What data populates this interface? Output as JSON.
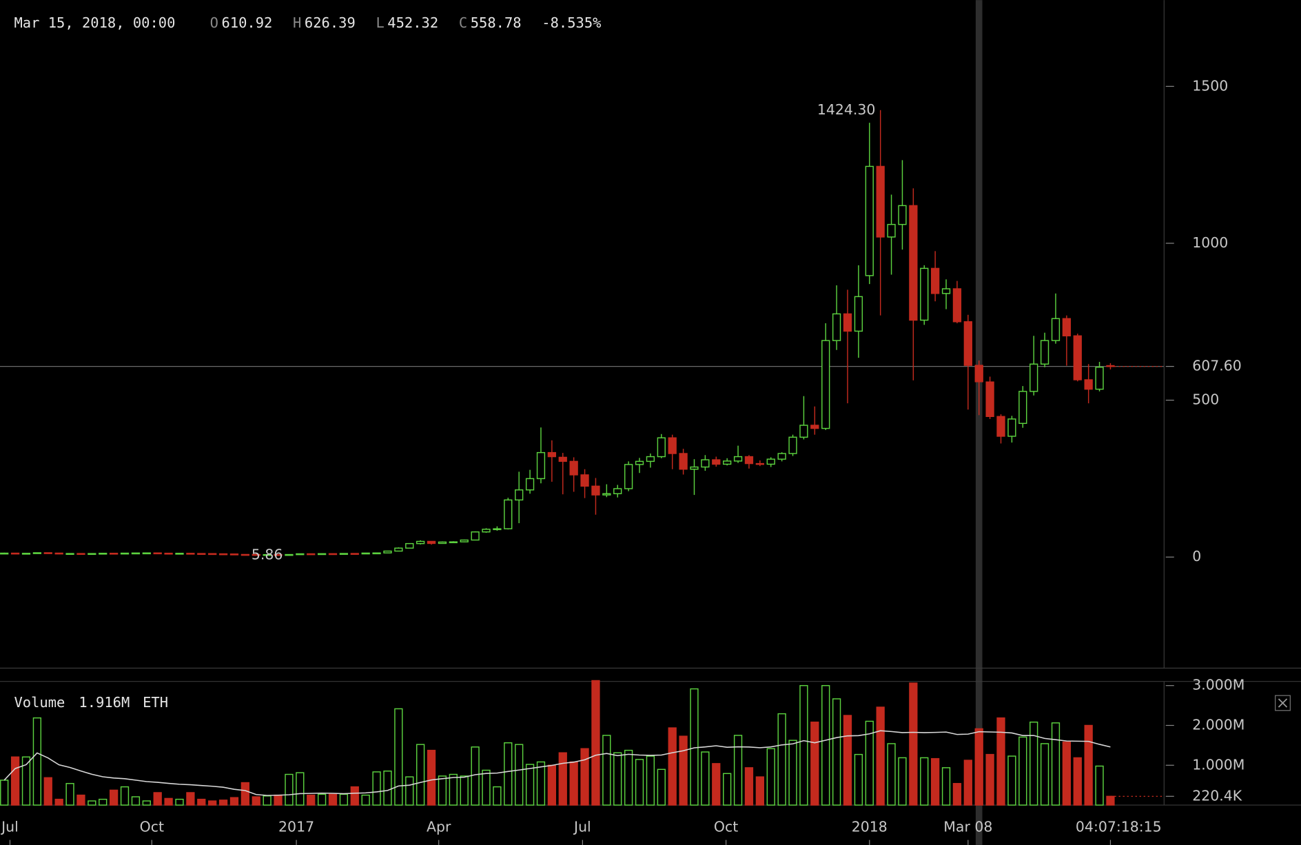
{
  "chart_data": {
    "type": "candlestick",
    "header": {
      "date": "Mar 15, 2018, 00:00",
      "fields": [
        {
          "name": "O",
          "value": 610.92
        },
        {
          "name": "H",
          "value": 626.39
        },
        {
          "name": "L",
          "value": 452.32
        },
        {
          "name": "C",
          "value": 558.78
        }
      ],
      "change": {
        "value": -8.535,
        "label": "-8.535%"
      }
    },
    "x": [
      0,
      1,
      2,
      3,
      4,
      5,
      6,
      7,
      8,
      9,
      10,
      11,
      12,
      13,
      14,
      15,
      16,
      17,
      18,
      19,
      20,
      21,
      22,
      23,
      24,
      25,
      26,
      27,
      28,
      29,
      30,
      31,
      32,
      33,
      34,
      35,
      36,
      37,
      38,
      39,
      40,
      41,
      42,
      43,
      44,
      45,
      46,
      47,
      48,
      49,
      50,
      51,
      52,
      53,
      54,
      55,
      56,
      57,
      58,
      59,
      60,
      61,
      62,
      63,
      64,
      65,
      66,
      67,
      68,
      69,
      70,
      71,
      72,
      73,
      74,
      75,
      76,
      77,
      78,
      79,
      80,
      81,
      82,
      83,
      84,
      85,
      86,
      87,
      88,
      89,
      90,
      91,
      92,
      93,
      94,
      95,
      96,
      97,
      98,
      99,
      100,
      101
    ],
    "open": [
      11.9,
      12.5,
      10.6,
      12.0,
      13.8,
      12.6,
      10.9,
      11.3,
      11.0,
      11.2,
      12.1,
      12.0,
      12.5,
      13.0,
      13.2,
      12.2,
      11.9,
      12.0,
      11.3,
      11.0,
      10.3,
      9.8,
      8.3,
      8.2,
      7.7,
      7.9,
      7.4,
      8.1,
      10.4,
      9.7,
      10.8,
      10.5,
      11.4,
      11.2,
      12.8,
      13.2,
      19.1,
      28.5,
      43.0,
      50.0,
      43.5,
      47.9,
      48.5,
      54.3,
      80.1,
      88.6,
      90.2,
      182,
      214,
      250,
      333,
      318,
      305,
      262,
      226,
      198,
      202,
      218,
      295,
      305,
      320,
      380,
      330,
      280,
      287,
      310,
      296,
      306,
      320,
      298,
      296,
      312,
      330,
      382,
      420,
      410,
      690,
      775,
      720,
      897,
      1245,
      1020,
      1060,
      1120,
      755,
      920,
      840,
      855,
      750,
      610.92,
      558,
      448,
      385,
      426,
      528,
      615,
      690,
      760,
      705,
      565,
      535,
      610
    ],
    "high": [
      14.1,
      12.7,
      12.4,
      14.3,
      14.0,
      12.8,
      11.9,
      11.5,
      11.6,
      12.3,
      12.4,
      12.8,
      13.3,
      13.5,
      13.4,
      12.4,
      12.2,
      12.1,
      11.5,
      11.2,
      10.6,
      9.9,
      8.8,
      8.5,
      8.4,
      8.2,
      8.3,
      11.3,
      10.9,
      11.2,
      11.0,
      11.6,
      11.7,
      13.1,
      13.6,
      19.8,
      30.8,
      44.1,
      53.5,
      51.0,
      49.8,
      50.5,
      55.7,
      82.0,
      92.0,
      98.0,
      189,
      272,
      278,
      413,
      372,
      332,
      318,
      280,
      252,
      232,
      230,
      305,
      316,
      330,
      392,
      390,
      345,
      312,
      325,
      320,
      315,
      355,
      325,
      308,
      318,
      334,
      390,
      513,
      480,
      745,
      866,
      852,
      930,
      1384,
      1424.3,
      1155,
      1265,
      1175,
      930,
      975,
      885,
      880,
      772,
      626.39,
      575,
      455,
      450,
      545,
      705,
      715,
      840,
      770,
      712,
      615,
      622,
      618
    ],
    "low": [
      11.3,
      9.6,
      10.3,
      11.8,
      12.2,
      10.2,
      10.6,
      10.7,
      10.8,
      11.0,
      11.6,
      11.8,
      12.3,
      12.8,
      11.9,
      11.6,
      11.5,
      10.9,
      10.6,
      10.1,
      9.4,
      8.0,
      7.6,
      7.3,
      5.86,
      7.1,
      7.2,
      8.0,
      9.4,
      9.6,
      10.3,
      10.4,
      10.9,
      11.1,
      12.6,
      13.0,
      18.6,
      28.0,
      40.1,
      39.5,
      42.6,
      45.6,
      47.2,
      53.9,
      77.5,
      84.0,
      88.0,
      108,
      202,
      235,
      240,
      200,
      208,
      188,
      135,
      191,
      190,
      210,
      268,
      285,
      315,
      280,
      263,
      198,
      275,
      288,
      292,
      300,
      282,
      290,
      287,
      305,
      322,
      375,
      390,
      405,
      660,
      490,
      635,
      870,
      770,
      900,
      980,
      563,
      740,
      815,
      790,
      745,
      470,
      452.32,
      440,
      362,
      365,
      412,
      515,
      605,
      680,
      610,
      560,
      490,
      528,
      598
    ],
    "close": [
      12.5,
      10.6,
      12.0,
      13.8,
      12.6,
      10.9,
      11.3,
      11.0,
      11.2,
      12.1,
      12.0,
      12.5,
      13.0,
      13.2,
      12.2,
      11.9,
      12.0,
      11.3,
      11.0,
      10.3,
      9.8,
      8.3,
      8.2,
      7.7,
      7.9,
      7.4,
      8.1,
      10.4,
      9.7,
      10.8,
      10.5,
      11.4,
      11.2,
      12.8,
      13.2,
      19.1,
      28.5,
      43.0,
      50.0,
      43.5,
      47.9,
      48.5,
      54.3,
      80.1,
      88.6,
      90.2,
      182,
      214,
      250,
      333,
      320,
      305,
      262,
      226,
      198,
      202,
      218,
      295,
      305,
      320,
      380,
      330,
      280,
      287,
      310,
      296,
      306,
      320,
      298,
      296,
      312,
      330,
      382,
      420,
      410,
      690,
      775,
      720,
      830,
      1245,
      1020,
      1060,
      1120,
      755,
      920,
      840,
      855,
      750,
      611,
      558.78,
      448,
      385,
      440,
      528,
      615,
      690,
      760,
      705,
      565,
      535,
      605,
      607.6
    ],
    "xlim": [
      -0.39,
      105.9
    ],
    "xticks": [
      {
        "value": 0.52,
        "label": "Jul"
      },
      {
        "value": 13.47,
        "label": "Oct"
      },
      {
        "value": 26.67,
        "label": "2017"
      },
      {
        "value": 39.67,
        "label": "Apr"
      },
      {
        "value": 52.8,
        "label": "Jul"
      },
      {
        "value": 65.9,
        "label": "Oct"
      },
      {
        "value": 79,
        "label": "2018"
      },
      {
        "value": 88,
        "label": "Mar 08"
      }
    ],
    "ylim": [
      -354,
      1775
    ],
    "yticks": [
      0,
      500,
      1000,
      1500
    ],
    "last_price": {
      "value": 607.6,
      "label": "607.60"
    },
    "max_label": {
      "value": 1424.3,
      "label": "1424.30"
    },
    "min_label": 5.86,
    "countdown": "04:07:18:15",
    "up_color": "#5cd23f",
    "down_color": "#c42a1e",
    "volume": {
      "title": "Volume",
      "unit": "ETH",
      "current": {
        "value": 1916000,
        "label": "1.916M"
      },
      "values": [
        625000,
        1208000,
        1208000,
        2188000,
        688000,
        146000,
        542000,
        250000,
        104000,
        146000,
        375000,
        458000,
        208000,
        104000,
        313000,
        167000,
        146000,
        313000,
        146000,
        104000,
        125000,
        188000,
        563000,
        208000,
        229000,
        250000,
        771000,
        813000,
        250000,
        271000,
        271000,
        271000,
        458000,
        250000,
        833000,
        854000,
        2417000,
        708000,
        1521000,
        1375000,
        729000,
        771000,
        729000,
        1458000,
        875000,
        458000,
        1563000,
        1521000,
        1021000,
        1083000,
        1000000,
        1313000,
        1083000,
        1417000,
        3125000,
        1750000,
        1313000,
        1375000,
        1146000,
        1229000,
        896000,
        1938000,
        1729000,
        2917000,
        1333000,
        1042000,
        792000,
        1750000,
        938000,
        708000,
        1417000,
        2292000,
        1625000,
        3000000,
        2083000,
        3000000,
        2667000,
        2250000,
        1271000,
        2104000,
        2458000,
        1542000,
        1188000,
        3063000,
        1188000,
        1167000,
        938000,
        542000,
        1125000,
        1916000,
        1271000,
        2188000,
        1229000,
        1708000,
        2083000,
        1542000,
        2063000,
        1583000,
        1188000,
        2000000,
        979000,
        220400
      ],
      "ylim": [
        0,
        3104000
      ],
      "yticks": [
        {
          "value": 1000000,
          "label": "1.000M"
        },
        {
          "value": 2000000,
          "label": "2.000M"
        },
        {
          "value": 3000000,
          "label": "3.000M"
        }
      ],
      "last": {
        "value": 220400,
        "label": "220.4K"
      }
    }
  }
}
